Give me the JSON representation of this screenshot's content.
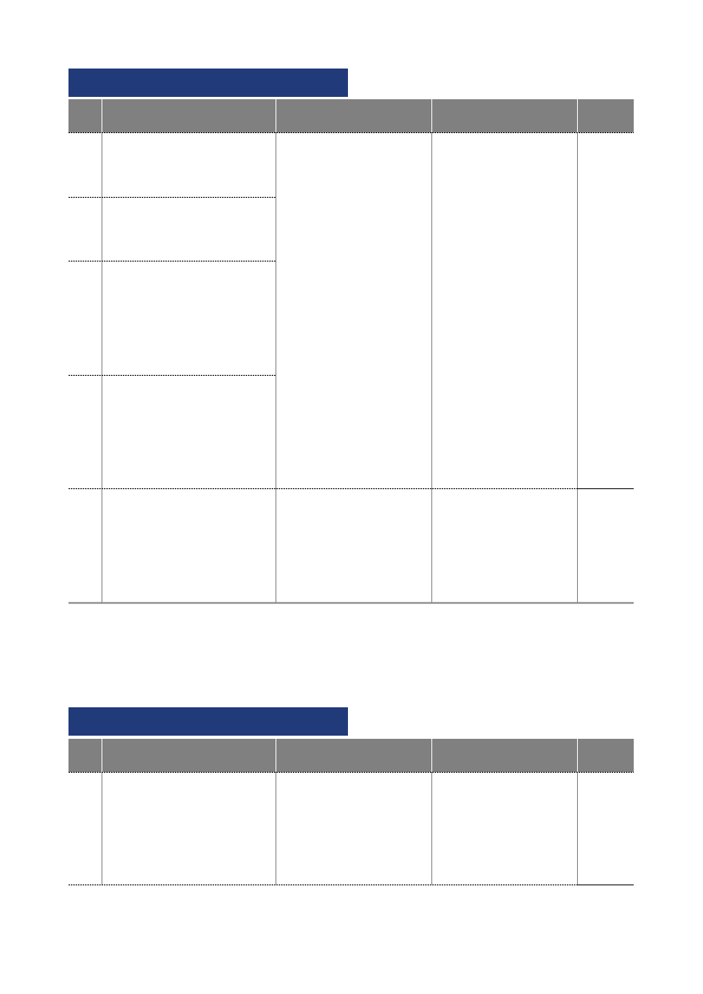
{
  "colors": {
    "title_bar": "#213a7a",
    "header": "#808080",
    "rule": "#808080"
  },
  "tables": [
    {
      "title": "",
      "headers": [
        "",
        "",
        "",
        "",
        ""
      ]
    },
    {
      "title": "",
      "headers": [
        "",
        "",
        "",
        "",
        ""
      ]
    }
  ]
}
